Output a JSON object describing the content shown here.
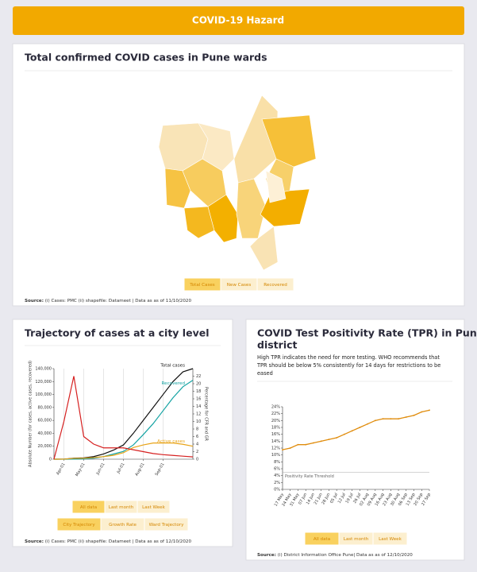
{
  "header": {
    "title": "COVID-19 Hazard"
  },
  "map_panel": {
    "title": "Total confirmed COVID cases in Pune wards",
    "buttons": [
      "Total Cases",
      "New Cases",
      "Recovered"
    ],
    "source_label": "Source:",
    "source": " (i) Cases: PMC (ii) shapefile: Datameet | Data as as of 11/10/2020"
  },
  "trajectory_panel": {
    "title": "Trajectory of cases at a city level",
    "chart_data": {
      "type": "line",
      "y_label": "Absolute Number (for cases, active cases, recovered)",
      "y2_label": "Percentage for CFR and GR",
      "x": [
        "Mar-24",
        "Apr-01",
        "Apr-15",
        "May-01",
        "May-15",
        "Jun-01",
        "Jun-15",
        "Jul-01",
        "Jul-15",
        "Aug-01",
        "Aug-15",
        "Sep-01",
        "Sep-15",
        "Oct-01",
        "Oct-10"
      ],
      "xticks": [
        "Apr-01",
        "May-01",
        "Jun-01",
        "Jul-01",
        "Aug-01",
        "Sep-01"
      ],
      "ylim": [
        0,
        140000
      ],
      "yticks": [
        0,
        {
          "value": 20000,
          "label": "20,000"
        },
        {
          "value": 40000,
          "label": "40,000"
        },
        {
          "value": 60000,
          "label": "60,000"
        },
        {
          "value": 80000,
          "label": "80,000"
        },
        {
          "value": 100000,
          "label": "100,000"
        },
        {
          "value": 120000,
          "label": "120,000"
        },
        {
          "value": 140000,
          "label": "140,000"
        }
      ],
      "y2lim": [
        0,
        24
      ],
      "y2ticks": [
        0,
        2,
        4,
        6,
        8,
        10,
        12,
        14,
        16,
        18,
        20,
        22
      ],
      "series": [
        {
          "name": "Total cases",
          "color": "#111111",
          "values": [
            0,
            100,
            1500,
            2000,
            4000,
            8000,
            14000,
            22000,
            40000,
            60000,
            80000,
            100000,
            120000,
            135000,
            140000
          ]
        },
        {
          "name": "Recovered",
          "color": "#14a3a3",
          "values": [
            0,
            0,
            200,
            500,
            1500,
            4000,
            8000,
            12000,
            22000,
            38000,
            55000,
            75000,
            95000,
            112000,
            122000
          ]
        },
        {
          "name": "Active cases",
          "color": "#e8a317",
          "values": [
            0,
            100,
            1300,
            1500,
            2500,
            4000,
            6000,
            10000,
            18000,
            22000,
            25000,
            25000,
            25000,
            23000,
            20000
          ]
        },
        {
          "color": "#d62020",
          "axis": "y2",
          "values": [
            0,
            10,
            22,
            6,
            4,
            3,
            3,
            3,
            2.5,
            2,
            1.5,
            1.2,
            1,
            0.8,
            0.6
          ]
        }
      ]
    },
    "buttons": [
      "All data",
      "Last month",
      "Last Week"
    ],
    "buttons2": [
      "City Trajectory",
      "Growth Rate",
      "Ward Trajectory"
    ],
    "source_label": "Source:",
    "source": " (i) Cases: PMC (ii) shapefile: Datameet | Data as as of 12/10/2020"
  },
  "tpr_panel": {
    "title_lines": [
      "COVID Test Positivity Rate (TPR) in Pune",
      "district"
    ],
    "description_lines": [
      "High TPR indicates the need for more testing. WHO recommends that",
      "TPR should be below 5% consistently for 14 days for restrictions to be",
      "eased"
    ],
    "chart_data": {
      "type": "line",
      "x": [
        "17 May",
        "24 May",
        "31 May",
        "07 Jun",
        "14 Jun",
        "21 Jun",
        "28 Jun",
        "05 Jul",
        "12 Jul",
        "19 Jul",
        "26 Jul",
        "02 Aug",
        "09 Aug",
        "16 Aug",
        "23 Aug",
        "30 Aug",
        "06 Sep",
        "13 Sep",
        "20 Sep",
        "27 Sep"
      ],
      "ylim": [
        0,
        24
      ],
      "yticks": [
        {
          "value": 0,
          "label": "0%"
        },
        {
          "value": 2,
          "label": "2%"
        },
        {
          "value": 4,
          "label": "4%"
        },
        {
          "value": 6,
          "label": "6%"
        },
        {
          "value": 8,
          "label": "8%"
        },
        {
          "value": 10,
          "label": "10%"
        },
        {
          "value": 12,
          "label": "12%"
        },
        {
          "value": 14,
          "label": "14%"
        },
        {
          "value": 16,
          "label": "16%"
        },
        {
          "value": 18,
          "label": "18%"
        },
        {
          "value": 20,
          "label": "20%"
        },
        {
          "value": 22,
          "label": "22%"
        },
        {
          "value": 24,
          "label": "24%"
        }
      ],
      "threshold": {
        "value": 5,
        "label": "Positivity Rate Threshold"
      },
      "series": [
        {
          "color": "#e08c0c",
          "values": [
            11.5,
            12,
            13,
            13,
            13.5,
            14,
            14.5,
            15,
            16,
            17,
            18,
            19,
            20,
            20.5,
            20.5,
            20.5,
            21,
            21.5,
            22.5,
            23
          ]
        }
      ]
    },
    "buttons": [
      "All data",
      "Last month",
      "Last Week"
    ],
    "source_label": "Source:",
    "source": " (i) District Information Office Pune| Data as as of 12/10/2020"
  }
}
